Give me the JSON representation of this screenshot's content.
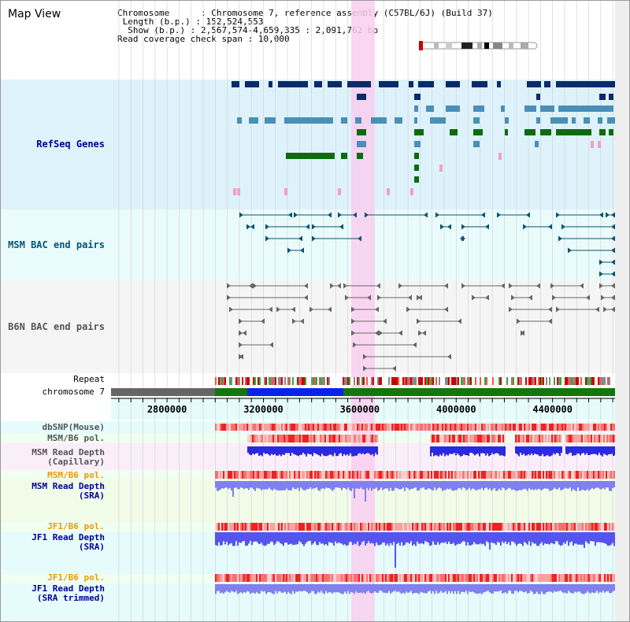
{
  "view_title": "Map View",
  "info": {
    "chromosome_key": "Chromosome",
    "chromosome_value": "Chromosome 7, reference assembly (C57BL/6J) (Build 37)",
    "length_key": "Length (b.p.)",
    "length_value": "152,524,553",
    "show_key": "Show (b.p.)",
    "show_value": "2,567,574-4,659,335 : 2,091,762 bp",
    "coverage_key": "Read coverage check span",
    "coverage_value": "10,000"
  },
  "tracks": {
    "refseq_label": "RefSeq Genes",
    "msm_bac_label": "MSM BAC end pairs",
    "b6n_bac_label": "B6N BAC end pairs",
    "repeat_label": "Repeat",
    "chromosome_label": "chromosome 7",
    "dbsnp_label": "dbSNP(Mouse)",
    "msm_b6_pol_1_label": "MSM/B6 pol.",
    "msm_depth_cap_label_1": "MSM Read Depth",
    "msm_depth_cap_label_2": "(Capillary)",
    "msm_b6_pol_2_label": "MSM/B6 pol.",
    "msm_depth_sra_label_1": "MSM Read Depth",
    "msm_depth_sra_label_2": "(SRA)",
    "jf1_b6_pol_1_label": "JF1/B6 pol.",
    "jf1_depth_sra_label_1": "JF1 Read Depth",
    "jf1_depth_sra_label_2": "(SRA)",
    "jf1_b6_pol_2_label": "JF1/B6 pol.",
    "jf1_depth_trim_label_1": "JF1 Read Depth",
    "jf1_depth_trim_label_2": "(SRA trimmed)"
  },
  "colors": {
    "label_navy": "#000099",
    "label_teal": "#005577",
    "label_gray": "#555555",
    "label_orange": "#ee9900",
    "gene_dark": "#0a2b6b",
    "gene_mid": "#4a8fb8",
    "gene_green": "#0d6b0d",
    "gene_pink": "#f5a0c0",
    "highlight": "#f9cff0",
    "depth_blue": "#2a2ae0",
    "depth_light": "#8080ee"
  },
  "axis": {
    "start_bp": 2567574,
    "end_bp": 4659335,
    "ticks": [
      {
        "label": "2800000"
      },
      {
        "label": "3200000"
      },
      {
        "label": "3600000"
      },
      {
        "label": "4000000"
      },
      {
        "label": "4400000"
      }
    ],
    "tick_values": [
      2800000,
      3200000,
      3600000,
      4000000,
      4400000
    ]
  }
}
